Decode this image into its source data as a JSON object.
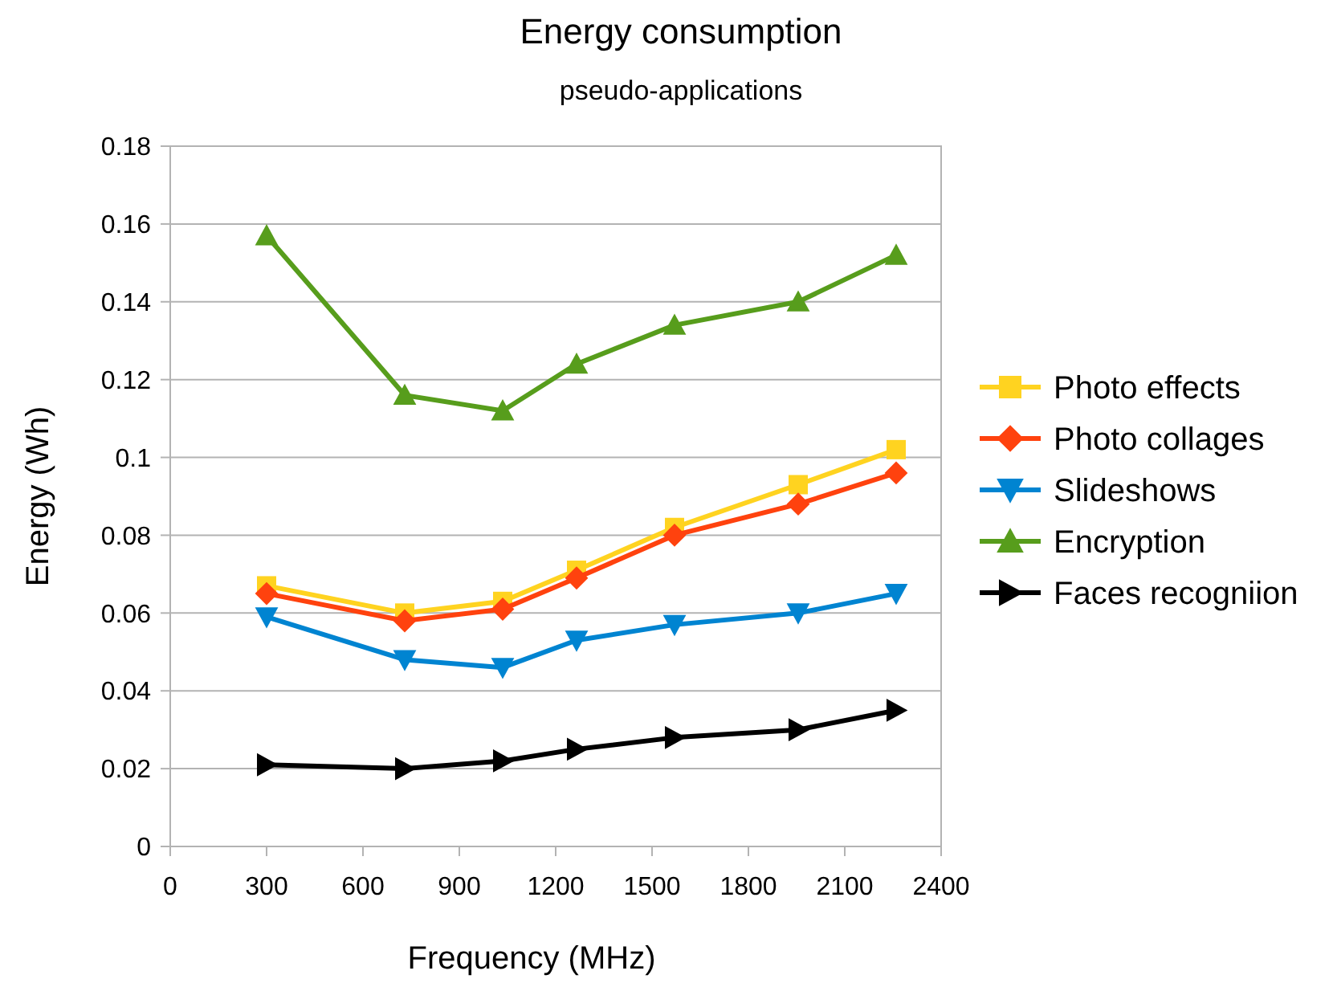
{
  "chart_data": {
    "type": "line",
    "title": "Energy consumption",
    "subtitle": "pseudo-applications",
    "xlabel": "Frequency (MHz)",
    "ylabel": "Energy (Wh)",
    "x": [
      300,
      730,
      1035,
      1265,
      1570,
      1955,
      2260
    ],
    "xlim": [
      0,
      2400
    ],
    "xticks": [
      0,
      300,
      600,
      900,
      1200,
      1500,
      1800,
      2100,
      2400
    ],
    "ylim": [
      0,
      0.18
    ],
    "yticks": [
      0,
      0.02,
      0.04,
      0.06,
      0.08,
      0.1,
      0.12,
      0.14,
      0.16,
      0.18
    ],
    "grid": "y",
    "legend": "right",
    "line_style": "solid",
    "series": [
      {
        "name": "Photo effects",
        "color": "#ffd320",
        "marker": "square",
        "values": [
          0.067,
          0.06,
          0.063,
          0.071,
          0.082,
          0.093,
          0.102
        ]
      },
      {
        "name": "Photo collages",
        "color": "#ff420e",
        "marker": "diamond",
        "values": [
          0.065,
          0.058,
          0.061,
          0.069,
          0.08,
          0.088,
          0.096
        ]
      },
      {
        "name": "Slideshows",
        "color": "#0084d1",
        "marker": "triangle-down",
        "values": [
          0.059,
          0.048,
          0.046,
          0.053,
          0.057,
          0.06,
          0.065
        ]
      },
      {
        "name": "Encryption",
        "color": "#579d1c",
        "marker": "triangle",
        "values": [
          0.157,
          0.116,
          0.112,
          0.124,
          0.134,
          0.14,
          0.152
        ]
      },
      {
        "name": "Faces recogniion",
        "color": "#000000",
        "marker": "triangle-right",
        "values": [
          0.021,
          0.02,
          0.022,
          0.025,
          0.028,
          0.03,
          0.035
        ]
      }
    ]
  }
}
